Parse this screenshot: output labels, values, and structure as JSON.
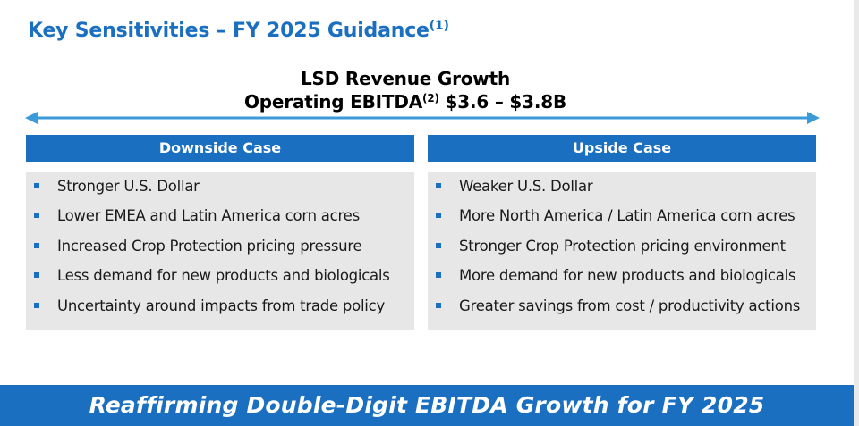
{
  "title": {
    "text": "Key Sensitivities – FY 2025 Guidance",
    "footnote": "(1)"
  },
  "headline": {
    "line1": "LSD Revenue Growth",
    "line2_label": "Operating EBITDA",
    "line2_footnote": "(2)",
    "line2_value": "$3.6 – $3.8B"
  },
  "colors": {
    "accent": "#1a6fc0",
    "arrow": "#3b9bd9",
    "panel": "#e7e7e7"
  },
  "downside": {
    "header": "Downside Case",
    "items": [
      "Stronger U.S. Dollar",
      "Lower EMEA and Latin America corn acres",
      "Increased Crop Protection pricing pressure",
      "Less demand for new products and biologicals",
      "Uncertainty around impacts from trade policy"
    ]
  },
  "upside": {
    "header": "Upside Case",
    "items": [
      "Weaker U.S. Dollar",
      "More North America / Latin America corn acres",
      "Stronger Crop Protection pricing environment",
      "More demand for new products and biologicals",
      "Greater savings from cost / productivity actions"
    ]
  },
  "banner": {
    "text": "Reaffirming Double-Digit EBITDA Growth for FY 2025"
  }
}
